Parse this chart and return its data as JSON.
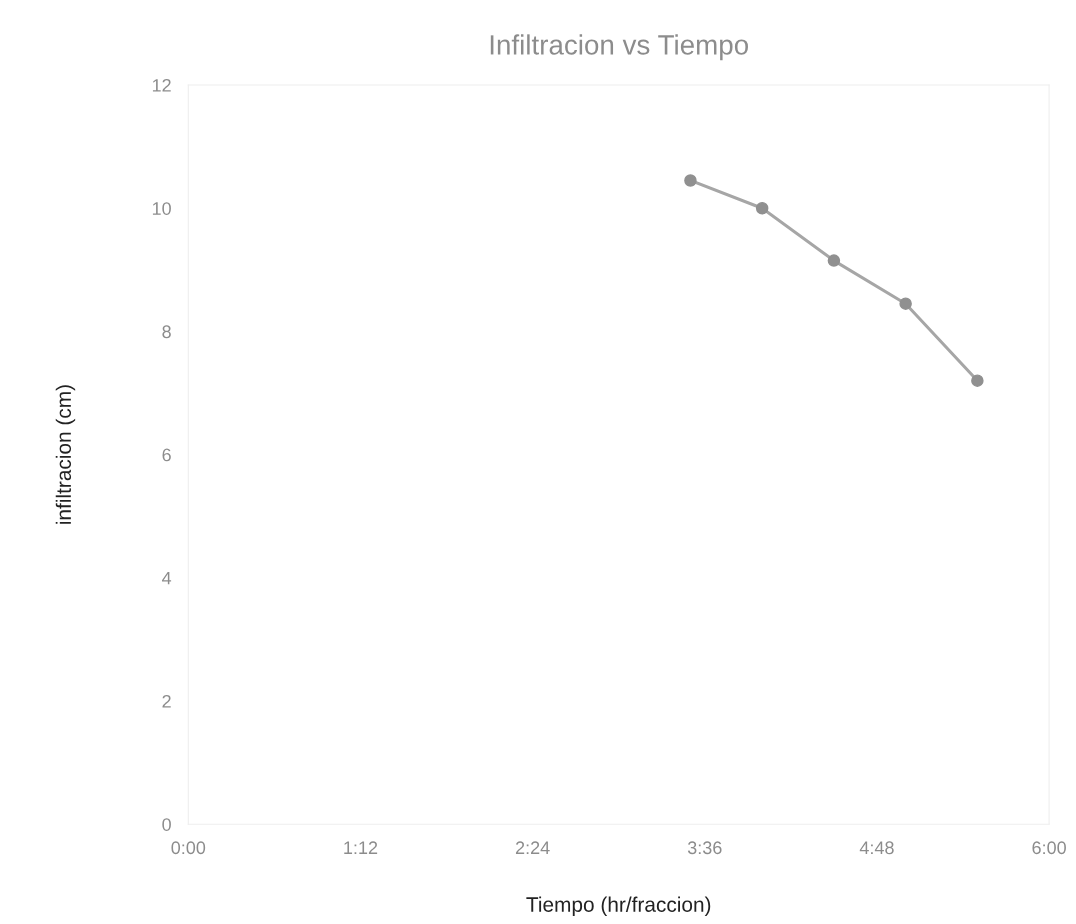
{
  "chart_data": {
    "type": "line",
    "title": "Infiltracion vs Tiempo",
    "xlabel": "Tiempo (hr/fraccion)",
    "ylabel": "infiltracion (cm)",
    "x": [
      3.5,
      4.0,
      4.5,
      5.0,
      5.5
    ],
    "series": [
      {
        "color": "#a6a6a6",
        "values": [
          10.45,
          10.0,
          9.15,
          8.45,
          7.2
        ]
      }
    ],
    "xlim": [
      0,
      6
    ],
    "xticks": [
      {
        "value": 0,
        "label": "0:00"
      },
      {
        "value": 1.2,
        "label": "1:12"
      },
      {
        "value": 2.4,
        "label": "2:24"
      },
      {
        "value": 3.6,
        "label": "3:36"
      },
      {
        "value": 4.8,
        "label": "4:48"
      },
      {
        "value": 6,
        "label": "6:00"
      }
    ],
    "ylim": [
      0,
      12
    ],
    "yticks": [
      0,
      2,
      4,
      6,
      8,
      10,
      12
    ],
    "grid": false,
    "marker": "circle",
    "line_style": "solid"
  }
}
